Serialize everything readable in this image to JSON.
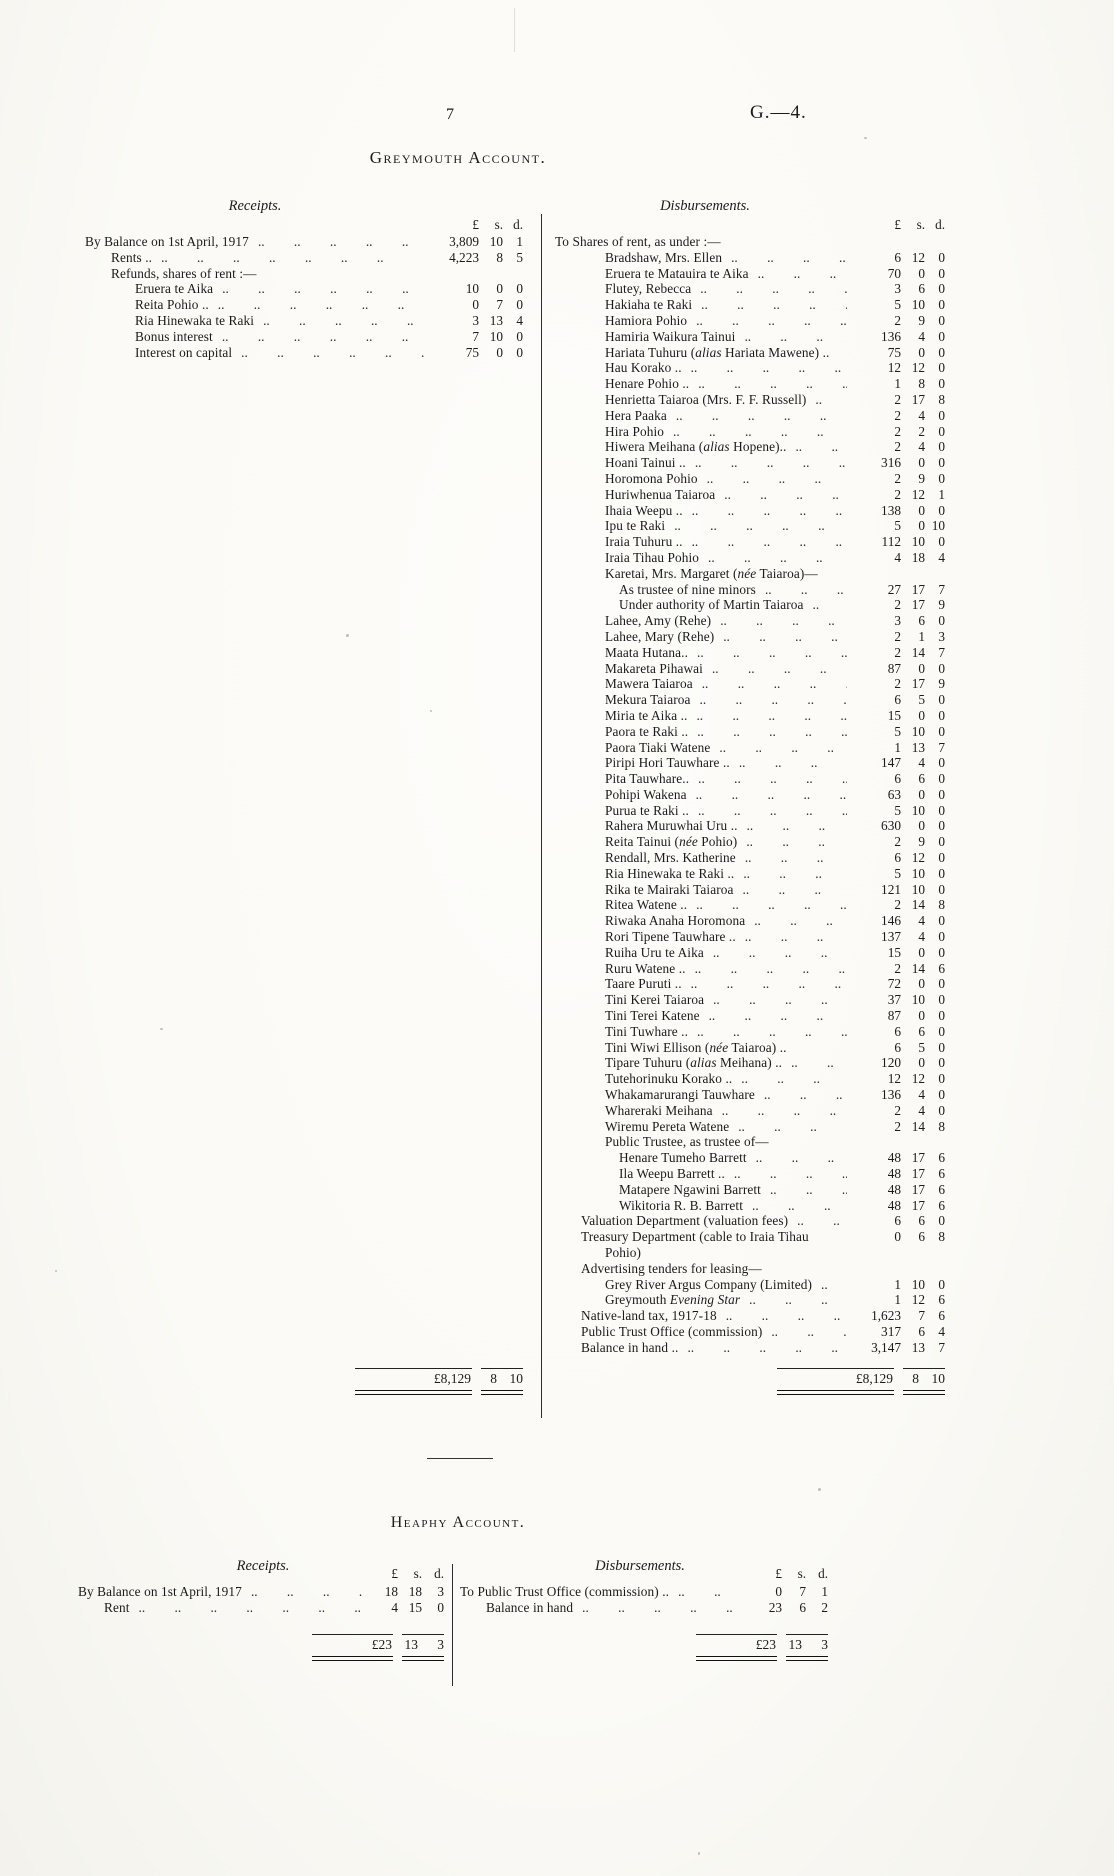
{
  "page": {
    "number": "7",
    "doc_ref": "G.—4."
  },
  "colors": {
    "ink": "#1b1b1b",
    "paper": "#fbfaf6"
  },
  "greymouth": {
    "title": "Greymouth Account.",
    "receipts": {
      "heading": "Receipts.",
      "cur": [
        "£",
        "s.",
        "d."
      ],
      "rows": [
        {
          "t": "By Balance on 1st April, 1917",
          "i": 0,
          "a": [
            "3,809",
            "10",
            "1"
          ]
        },
        {
          "t": "Rents ..",
          "i": 1,
          "a": [
            "4,223",
            "8",
            "5"
          ]
        },
        {
          "t": "Refunds, shares of rent :—",
          "i": 1,
          "nd": true
        },
        {
          "t": "Eruera te Aika",
          "i": 2,
          "a": [
            "10",
            "0",
            "0"
          ]
        },
        {
          "t": "Reita Pohio ..",
          "i": 2,
          "a": [
            "0",
            "7",
            "0"
          ]
        },
        {
          "t": "Ria Hinewaka te Raki",
          "i": 2,
          "a": [
            "3",
            "13",
            "4"
          ]
        },
        {
          "t": "Bonus interest",
          "i": 2,
          "a": [
            "7",
            "10",
            "0"
          ]
        },
        {
          "t": "Interest on capital",
          "i": 2,
          "a": [
            "75",
            "0",
            "0"
          ]
        }
      ],
      "total": [
        "£8,129",
        "8",
        "10"
      ]
    },
    "disbursements": {
      "heading": "Disbursements.",
      "cur": [
        "£",
        "s.",
        "d."
      ],
      "rows": [
        {
          "t": "To Shares of rent, as under :—",
          "i": 0,
          "nd": true
        },
        {
          "t": "Bradshaw, Mrs. Ellen",
          "i": 2,
          "a": [
            "6",
            "12",
            "0"
          ]
        },
        {
          "t": "Eruera te Matauira te Aika",
          "i": 2,
          "a": [
            "70",
            "0",
            "0"
          ]
        },
        {
          "t": "Flutey, Rebecca",
          "i": 2,
          "a": [
            "3",
            "6",
            "0"
          ]
        },
        {
          "t": "Hakiaha te Raki",
          "i": 2,
          "a": [
            "5",
            "10",
            "0"
          ]
        },
        {
          "t": "Hamiora Pohio",
          "i": 2,
          "a": [
            "2",
            "9",
            "0"
          ]
        },
        {
          "t": "Hamiria Waikura Tainui",
          "i": 2,
          "a": [
            "136",
            "4",
            "0"
          ]
        },
        {
          "t": "Hariata Tuhuru (*alias* Hariata Mawene) ..",
          "i": 2,
          "a": [
            "75",
            "0",
            "0"
          ],
          "nd": true
        },
        {
          "t": "Hau Korako ..",
          "i": 2,
          "a": [
            "12",
            "12",
            "0"
          ]
        },
        {
          "t": "Henare Pohio ..",
          "i": 2,
          "a": [
            "1",
            "8",
            "0"
          ]
        },
        {
          "t": "Henrietta Taiaroa (Mrs. F. F. Russell)",
          "i": 2,
          "a": [
            "2",
            "17",
            "8"
          ]
        },
        {
          "t": "Hera Paaka",
          "i": 2,
          "a": [
            "2",
            "4",
            "0"
          ]
        },
        {
          "t": "Hira Pohio",
          "i": 2,
          "a": [
            "2",
            "2",
            "0"
          ]
        },
        {
          "t": "Hiwera Meihana (*alias* Hopene)..",
          "i": 2,
          "a": [
            "2",
            "4",
            "0"
          ]
        },
        {
          "t": "Hoani Tainui ..",
          "i": 2,
          "a": [
            "316",
            "0",
            "0"
          ]
        },
        {
          "t": "Horomona Pohio",
          "i": 2,
          "a": [
            "2",
            "9",
            "0"
          ]
        },
        {
          "t": "Huriwhenua Taiaroa",
          "i": 2,
          "a": [
            "2",
            "12",
            "1"
          ]
        },
        {
          "t": "Ihaia Weepu ..",
          "i": 2,
          "a": [
            "138",
            "0",
            "0"
          ]
        },
        {
          "t": "Ipu te Raki",
          "i": 2,
          "a": [
            "5",
            "0",
            "10"
          ]
        },
        {
          "t": "Iraia Tuhuru ..",
          "i": 2,
          "a": [
            "112",
            "10",
            "0"
          ]
        },
        {
          "t": "Iraia Tihau Pohio",
          "i": 2,
          "a": [
            "4",
            "18",
            "4"
          ]
        },
        {
          "t": "Karetai, Mrs. Margaret (*née* Taiaroa)—",
          "i": 2,
          "nd": true
        },
        {
          "t": "As trustee of nine minors",
          "i": 3,
          "a": [
            "27",
            "17",
            "7"
          ]
        },
        {
          "t": "Under authority of Martin Taiaroa",
          "i": 3,
          "a": [
            "2",
            "17",
            "9"
          ]
        },
        {
          "t": "Lahee, Amy (Rehe)",
          "i": 2,
          "a": [
            "3",
            "6",
            "0"
          ]
        },
        {
          "t": "Lahee, Mary (Rehe)",
          "i": 2,
          "a": [
            "2",
            "1",
            "3"
          ]
        },
        {
          "t": "Maata Hutana..",
          "i": 2,
          "a": [
            "2",
            "14",
            "7"
          ]
        },
        {
          "t": "Makareta Pihawai",
          "i": 2,
          "a": [
            "87",
            "0",
            "0"
          ]
        },
        {
          "t": "Mawera Taiaroa",
          "i": 2,
          "a": [
            "2",
            "17",
            "9"
          ]
        },
        {
          "t": "Mekura Taiaroa",
          "i": 2,
          "a": [
            "6",
            "5",
            "0"
          ]
        },
        {
          "t": "Miria te Aika ..",
          "i": 2,
          "a": [
            "15",
            "0",
            "0"
          ]
        },
        {
          "t": "Paora te Raki ..",
          "i": 2,
          "a": [
            "5",
            "10",
            "0"
          ]
        },
        {
          "t": "Paora Tiaki Watene",
          "i": 2,
          "a": [
            "1",
            "13",
            "7"
          ]
        },
        {
          "t": "Piripi Hori Tauwhare ..",
          "i": 2,
          "a": [
            "147",
            "4",
            "0"
          ]
        },
        {
          "t": "Pita Tauwhare..",
          "i": 2,
          "a": [
            "6",
            "6",
            "0"
          ]
        },
        {
          "t": "Pohipi Wakena",
          "i": 2,
          "a": [
            "63",
            "0",
            "0"
          ]
        },
        {
          "t": "Purua te Raki ..",
          "i": 2,
          "a": [
            "5",
            "10",
            "0"
          ]
        },
        {
          "t": "Rahera Muruwhai Uru ..",
          "i": 2,
          "a": [
            "630",
            "0",
            "0"
          ]
        },
        {
          "t": "Reita Tainui (*née* Pohio)",
          "i": 2,
          "a": [
            "2",
            "9",
            "0"
          ]
        },
        {
          "t": "Rendall, Mrs. Katherine",
          "i": 2,
          "a": [
            "6",
            "12",
            "0"
          ]
        },
        {
          "t": "Ria Hinewaka te Raki ..",
          "i": 2,
          "a": [
            "5",
            "10",
            "0"
          ]
        },
        {
          "t": "Rika te Mairaki Taiaroa",
          "i": 2,
          "a": [
            "121",
            "10",
            "0"
          ]
        },
        {
          "t": "Ritea Watene ..",
          "i": 2,
          "a": [
            "2",
            "14",
            "8"
          ]
        },
        {
          "t": "Riwaka Anaha Horomona",
          "i": 2,
          "a": [
            "146",
            "4",
            "0"
          ]
        },
        {
          "t": "Rori Tipene Tauwhare ..",
          "i": 2,
          "a": [
            "137",
            "4",
            "0"
          ]
        },
        {
          "t": "Ruiha Uru te Aika",
          "i": 2,
          "a": [
            "15",
            "0",
            "0"
          ]
        },
        {
          "t": "Ruru Watene ..",
          "i": 2,
          "a": [
            "2",
            "14",
            "6"
          ]
        },
        {
          "t": "Taare Puruti ..",
          "i": 2,
          "a": [
            "72",
            "0",
            "0"
          ]
        },
        {
          "t": "Tini Kerei Taiaroa",
          "i": 2,
          "a": [
            "37",
            "10",
            "0"
          ]
        },
        {
          "t": "Tini Terei Katene",
          "i": 2,
          "a": [
            "87",
            "0",
            "0"
          ]
        },
        {
          "t": "Tini Tuwhare ..",
          "i": 2,
          "a": [
            "6",
            "6",
            "0"
          ]
        },
        {
          "t": "Tini Wiwi Ellison (*née* Taiaroa) ..",
          "i": 2,
          "a": [
            "6",
            "5",
            "0"
          ],
          "nd": true
        },
        {
          "t": "Tipare Tuhuru (*alias* Meihana) ..",
          "i": 2,
          "a": [
            "120",
            "0",
            "0"
          ]
        },
        {
          "t": "Tutehorinuku Korako ..",
          "i": 2,
          "a": [
            "12",
            "12",
            "0"
          ]
        },
        {
          "t": "Whakamarurangi Tauwhare",
          "i": 2,
          "a": [
            "136",
            "4",
            "0"
          ]
        },
        {
          "t": "Whareraki Meihana",
          "i": 2,
          "a": [
            "2",
            "4",
            "0"
          ]
        },
        {
          "t": "Wiremu Pereta Watene",
          "i": 2,
          "a": [
            "2",
            "14",
            "8"
          ]
        },
        {
          "t": "Public Trustee, as trustee of—",
          "i": 2,
          "nd": true
        },
        {
          "t": "Henare Tumeho Barrett",
          "i": 3,
          "a": [
            "48",
            "17",
            "6"
          ]
        },
        {
          "t": "Ila Weepu Barrett ..",
          "i": 3,
          "a": [
            "48",
            "17",
            "6"
          ]
        },
        {
          "t": "Matapere Ngawini Barrett",
          "i": 3,
          "a": [
            "48",
            "17",
            "6"
          ]
        },
        {
          "t": "Wikitoria R. B. Barrett",
          "i": 3,
          "a": [
            "48",
            "17",
            "6"
          ]
        },
        {
          "t": "Valuation Department (valuation fees)",
          "i": 1,
          "a": [
            "6",
            "6",
            "0"
          ]
        },
        {
          "t": "Treasury Department (cable to Iraia Tihau",
          "i": 1,
          "a": [
            "0",
            "6",
            "8"
          ],
          "nd": true
        },
        {
          "t": "Pohio)",
          "i": 2,
          "nd": true
        },
        {
          "t": "Advertising tenders for leasing—",
          "i": 1,
          "nd": true
        },
        {
          "t": "Grey River Argus Company (Limited)",
          "i": 2,
          "a": [
            "1",
            "10",
            "0"
          ]
        },
        {
          "t": "Greymouth *Evening Star*",
          "i": 2,
          "a": [
            "1",
            "12",
            "6"
          ]
        },
        {
          "t": "Native-land tax, 1917-18",
          "i": 1,
          "a": [
            "1,623",
            "7",
            "6"
          ]
        },
        {
          "t": "Public Trust Office (commission)",
          "i": 1,
          "a": [
            "317",
            "6",
            "4"
          ]
        },
        {
          "t": "Balance in hand ..",
          "i": 1,
          "a": [
            "3,147",
            "13",
            "7"
          ]
        }
      ],
      "total": [
        "£8,129",
        "8",
        "10"
      ]
    }
  },
  "heaphy": {
    "title": "Heaphy Account.",
    "receipts": {
      "heading": "Receipts.",
      "cur": [
        "£",
        "s.",
        "d."
      ],
      "rows": [
        {
          "t": "By Balance on 1st April, 1917",
          "i": 0,
          "a": [
            "18",
            "18",
            "3"
          ]
        },
        {
          "t": "Rent",
          "i": 1,
          "a": [
            "4",
            "15",
            "0"
          ]
        }
      ],
      "total": [
        "£23",
        "13",
        "3"
      ]
    },
    "disbursements": {
      "heading": "Disbursements.",
      "cur": [
        "£",
        "s.",
        "d."
      ],
      "rows": [
        {
          "t": "To Public Trust Office (commission) ..",
          "i": 0,
          "a": [
            "0",
            "7",
            "1"
          ]
        },
        {
          "t": "Balance in hand",
          "i": 1,
          "a": [
            "23",
            "6",
            "2"
          ]
        }
      ],
      "total": [
        "£23",
        "13",
        "3"
      ]
    }
  }
}
